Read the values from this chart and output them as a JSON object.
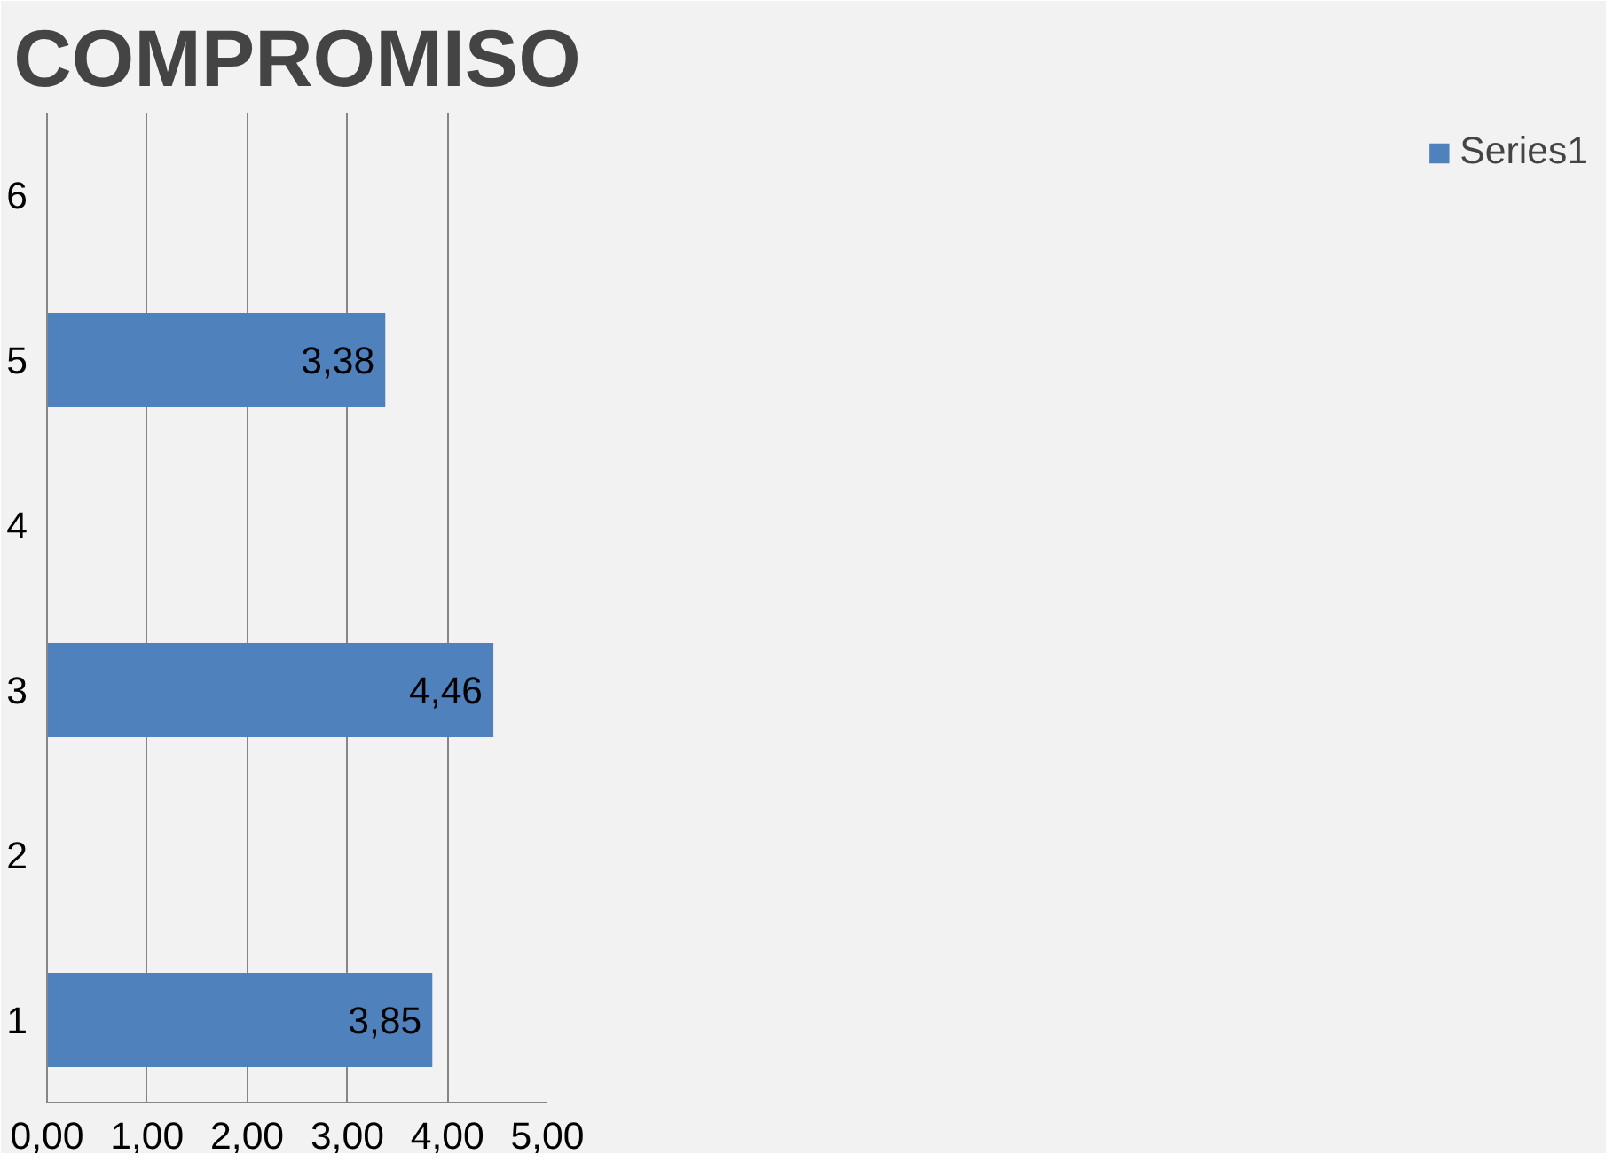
{
  "chart_data": {
    "type": "bar",
    "orientation": "horizontal",
    "title": "COMPROMISO",
    "categories": [
      "6",
      "5",
      "4",
      "3",
      "2",
      "1"
    ],
    "series": [
      {
        "name": "Series1",
        "color": "#4f81bd",
        "values": [
          null,
          3.38,
          null,
          4.46,
          null,
          3.85
        ],
        "value_labels": [
          null,
          "3,38",
          null,
          "4,46",
          null,
          "3,85"
        ]
      }
    ],
    "xlim": [
      0,
      5
    ],
    "xticks": [
      {
        "value": 0,
        "label": "0,00"
      },
      {
        "value": 1,
        "label": "1,00"
      },
      {
        "value": 2,
        "label": "2,00"
      },
      {
        "value": 3,
        "label": "3,00"
      },
      {
        "value": 4,
        "label": "4,00"
      },
      {
        "value": 5,
        "label": "5,00"
      }
    ],
    "grid": "x",
    "legend": "right"
  }
}
